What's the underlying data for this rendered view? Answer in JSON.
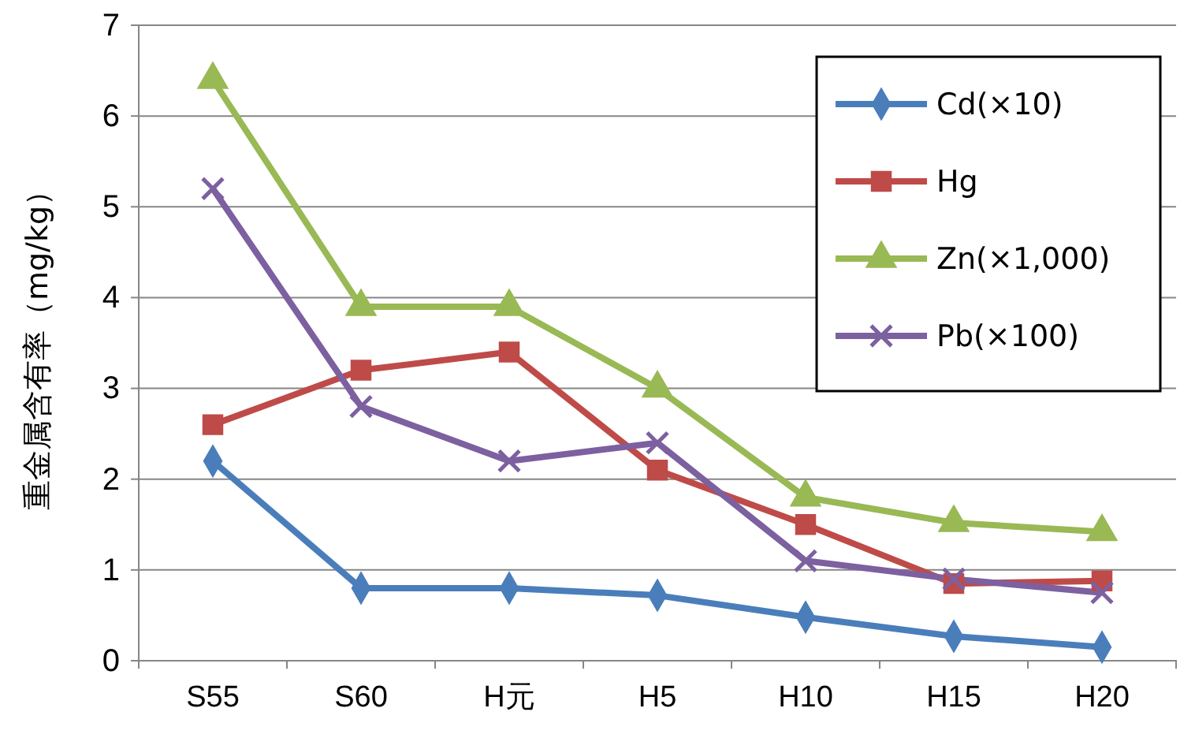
{
  "chart_data": {
    "type": "line",
    "ylabel": "重金属含有率（mg/kg）",
    "categories": [
      "S55",
      "S60",
      "H元",
      "H5",
      "H10",
      "H15",
      "H20"
    ],
    "ylim": [
      0,
      7
    ],
    "yticks": [
      0,
      1,
      2,
      3,
      4,
      5,
      6,
      7
    ],
    "grid": "y",
    "legend": "top right",
    "line_style": "solid",
    "series": [
      {
        "name": "Cd(×10)",
        "color": "#4a7ebb",
        "marker": "diamond",
        "values": [
          2.2,
          0.8,
          0.8,
          0.72,
          0.48,
          0.27,
          0.15
        ]
      },
      {
        "name": "Hg",
        "color": "#be4b48",
        "marker": "square",
        "values": [
          2.6,
          3.2,
          3.4,
          2.1,
          1.5,
          0.85,
          0.88
        ]
      },
      {
        "name": "Zn(×1,000)",
        "color": "#98b954",
        "marker": "triangle",
        "values": [
          6.4,
          3.9,
          3.9,
          3.0,
          1.8,
          1.52,
          1.42
        ]
      },
      {
        "name": "Pb(×100)",
        "color": "#7d60a0",
        "marker": "cross",
        "values": [
          5.2,
          2.8,
          2.2,
          2.4,
          1.1,
          0.9,
          0.75
        ]
      }
    ]
  }
}
